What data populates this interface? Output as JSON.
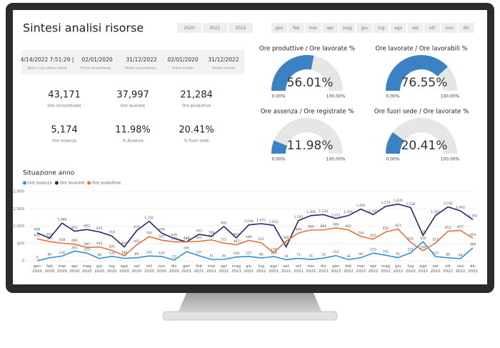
{
  "header": {
    "title": "Sintesi analisi risorse"
  },
  "year_buttons": [
    "2020",
    "2021",
    "2022"
  ],
  "month_buttons": [
    "gen",
    "feb",
    "mar",
    "apr",
    "mag",
    "giu",
    "lug",
    "ago",
    "set",
    "ott",
    "nov",
    "dic"
  ],
  "date_cards": [
    {
      "value": "4/14/2022 7:51:29 |",
      "label": "Data e ora ultimo reload"
    },
    {
      "value": "02/01/2020",
      "label": "Primo consuntivazi..."
    },
    {
      "value": "31/12/2022",
      "label": "Ultima consuntivaz..."
    },
    {
      "value": "02/01/2020",
      "label": "Primo evento"
    },
    {
      "value": "31/12/2022",
      "label": "Ultimo evento"
    }
  ],
  "kpis": [
    {
      "value": "43,171",
      "label": "Ore consuntivate"
    },
    {
      "value": "37,997",
      "label": "Ore lavorate"
    },
    {
      "value": "21,284",
      "label": "Ore produttive"
    },
    {
      "value": "5,174",
      "label": "Ore assenza"
    },
    {
      "value": "11.98%",
      "label": "% Assenza"
    },
    {
      "value": "20.41%",
      "label": "% Fuori sede"
    }
  ],
  "gauges": [
    {
      "title": "Ore produttive / Ore lavorate %",
      "value": 56.01,
      "value_label": "56.01%",
      "min": {
        "value": 0,
        "label": "0.00%"
      },
      "max": {
        "value": 100,
        "label": "100.00%"
      },
      "color": "#3a82c4"
    },
    {
      "title": "Ore lavorate / Ore lavorabili %",
      "value": 76.55,
      "value_label": "76.55%",
      "min": {
        "value": 0,
        "label": "0.00%"
      },
      "max": {
        "value": 100,
        "label": "100.00%"
      },
      "color": "#3a82c4"
    },
    {
      "title": "Ore assenza / Ore registrate %",
      "value": 11.98,
      "value_label": "11.98%",
      "min": {
        "value": 0,
        "label": "0.00%"
      },
      "max": {
        "value": 100,
        "label": "100.00%"
      },
      "color": "#3a82c4"
    },
    {
      "title": "Ore fuori sede / Ore lavorate %",
      "value": 20.41,
      "value_label": "20.41%",
      "min": {
        "value": 0,
        "label": "0.00%"
      },
      "max": {
        "value": 100,
        "label": "100.00%"
      },
      "color": "#3a82c4"
    }
  ],
  "chart_data": {
    "type": "line",
    "title": "Situazione anno",
    "categories": [
      "gen 2020",
      "feb 2020",
      "mar 2020",
      "apr 2020",
      "mag 2020",
      "giu 2020",
      "lug 2020",
      "ago 2020",
      "set 2020",
      "ott 2020",
      "nov 2020",
      "dic 2020",
      "gen 2021",
      "feb 2021",
      "mar 2021",
      "apr 2021",
      "mag 2021",
      "giu 2021",
      "lug 2021",
      "ago 2021",
      "set 2021",
      "ott 2021",
      "nov 2021",
      "dic 2021",
      "gen 2022",
      "feb 2022",
      "mar 2022",
      "apr 2022",
      "mag 2022",
      "giu 2022",
      "lug 2022",
      "ago 2022",
      "set 2022",
      "ott 2022",
      "nov 2022",
      "dic 2022"
    ],
    "series": [
      {
        "name": "Ore assenza",
        "color": "#2d8fd8",
        "values": [
          5,
          86,
          136,
          281,
          223,
          68,
          128,
          72,
          89,
          141,
          126,
          22,
          265,
          147,
          41,
          44,
          109,
          127,
          80,
          124,
          34,
          71,
          41,
          76,
          151,
          34,
          90,
          223,
          161,
          91,
          231,
          550,
          123,
          86,
          64,
          369
        ]
      },
      {
        "name": "Ore lavorate",
        "color": "#1b2a73",
        "values": [
          808,
          655,
          1088,
          855,
          903,
          835,
          718,
          401,
          874,
          1142,
          799,
          646,
          548,
          763,
          709,
          992,
          662,
          1038,
          1072,
          1023,
          401,
          1165,
          1306,
          1334,
          1221,
          1306,
          1492,
          1335,
          1574,
          1635,
          1538,
          735,
          1307,
          1556,
          1442,
          1191
        ],
        "value_labels": [
          "808",
          "655",
          "1,088",
          "855",
          "903",
          "835",
          "718",
          "401",
          "874",
          "1,142",
          "799",
          "646",
          "548",
          "763",
          "709",
          "992",
          "662",
          "1,038",
          "1,072",
          "1,023",
          "401",
          "1,165",
          "1,306",
          "1,334",
          "1,221",
          "1,306",
          "1,492",
          "1,335",
          "1,574",
          "1,635",
          "1,538",
          "735",
          "1,307",
          "1,556",
          "1,442",
          "1,191"
        ]
      },
      {
        "name": "Ore produttive",
        "color": "#e8703a",
        "values": [
          635,
          555,
          508,
          480,
          385,
          401,
          305,
          143,
          462,
          700,
          597,
          548,
          548,
          562,
          605,
          511,
          463,
          588,
          521,
          230,
          566,
          804,
          889,
          892,
          949,
          892,
          704,
          625,
          832,
          917,
          535,
          290,
          513,
          853,
          877,
          654
        ]
      }
    ],
    "ylim": [
      0,
      2000
    ],
    "yticks": [
      0,
      500,
      {
        "value": 1000,
        "label": "1,000"
      },
      {
        "value": 1500,
        "label": "1,500"
      },
      {
        "value": 2000,
        "label": "2,000"
      }
    ],
    "grid": true
  }
}
